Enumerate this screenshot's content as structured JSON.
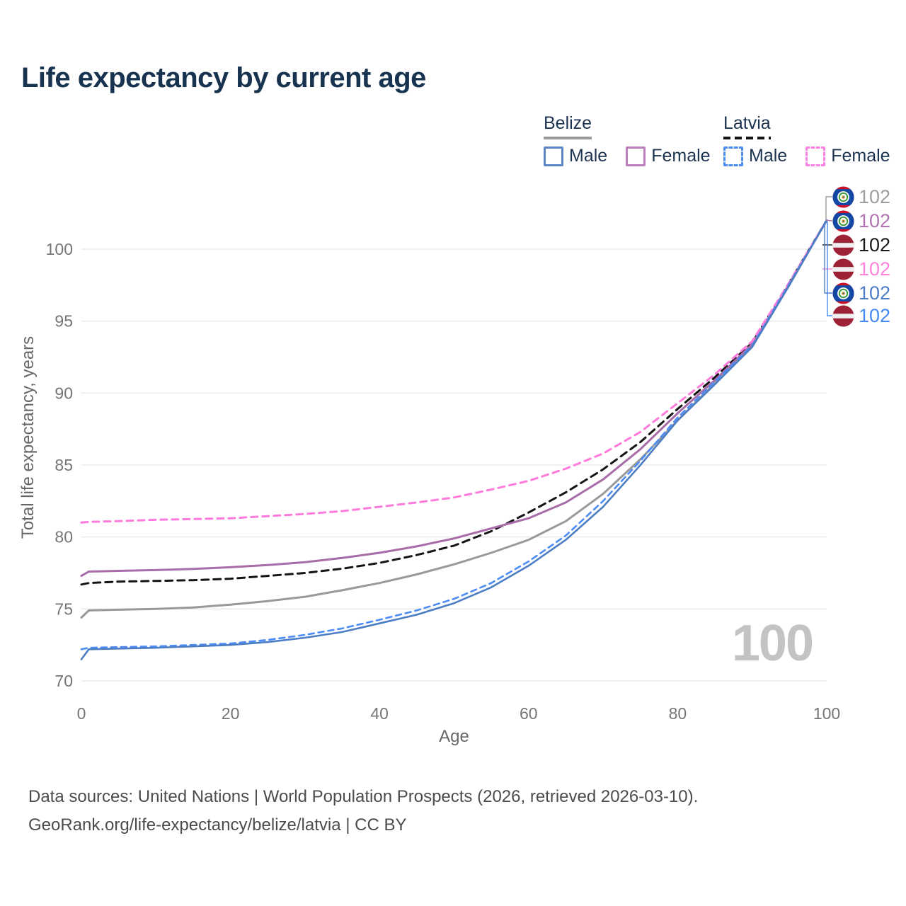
{
  "title": "Life expectancy by current age",
  "legend": {
    "groups": [
      {
        "label": "Belize",
        "underline_style": "solid",
        "underline_color": "#9a9a9a",
        "items": [
          {
            "label": "Male",
            "color": "#5b84c4",
            "dashed": false
          },
          {
            "label": "Female",
            "color": "#bd7fbc",
            "dashed": false
          }
        ]
      },
      {
        "label": "Latvia",
        "underline_style": "dashed",
        "underline_color": "#141414",
        "items": [
          {
            "label": "Male",
            "color": "#4e8cf0",
            "dashed": true
          },
          {
            "label": "Female",
            "color": "#fc83e2",
            "dashed": true
          }
        ]
      }
    ]
  },
  "watermark": "100",
  "footer": {
    "line1": "Data sources: United Nations | World Population Prospects (2026, retrieved 2026-03-10).",
    "line2": "GeoRank.org/life-expectancy/belize/latvia | CC BY"
  },
  "chart_data": {
    "type": "line",
    "title": "Life expectancy by current age",
    "xlabel": "Age",
    "ylabel": "Total life expectancy, years",
    "xlim": [
      0,
      100
    ],
    "ylim": [
      70,
      100
    ],
    "grid": true,
    "legend_position": "top-right",
    "xticks": [
      0,
      20,
      40,
      60,
      80,
      100
    ],
    "yticks": [
      70,
      75,
      80,
      85,
      90,
      95,
      100
    ],
    "x": [
      0,
      1,
      5,
      10,
      15,
      20,
      25,
      30,
      35,
      40,
      45,
      50,
      55,
      60,
      65,
      70,
      75,
      80,
      85,
      90,
      95,
      100
    ],
    "series": [
      {
        "name": "Belize",
        "country": "belize",
        "sex": "both",
        "color": "#999999",
        "dash": null,
        "width": 3,
        "values": [
          74.4,
          74.9,
          74.95,
          75.0,
          75.1,
          75.3,
          75.55,
          75.85,
          76.3,
          76.8,
          77.4,
          78.1,
          78.9,
          79.8,
          81.1,
          83.0,
          85.4,
          88.1,
          90.7,
          93.3,
          97.6,
          102
        ]
      },
      {
        "name": "Latvia",
        "country": "latvia",
        "sex": "both",
        "color": "#141414",
        "dash": "10 7",
        "width": 3,
        "values": [
          76.7,
          76.8,
          76.9,
          76.95,
          77.0,
          77.1,
          77.3,
          77.5,
          77.8,
          78.2,
          78.75,
          79.4,
          80.4,
          81.7,
          83.1,
          84.7,
          86.6,
          88.9,
          91.1,
          93.5,
          97.7,
          102
        ]
      },
      {
        "name": "Belize Female",
        "country": "belize",
        "sex": "female",
        "color": "#a86ca8",
        "dash": null,
        "width": 3,
        "values": [
          77.3,
          77.6,
          77.65,
          77.7,
          77.78,
          77.9,
          78.05,
          78.25,
          78.55,
          78.9,
          79.35,
          79.9,
          80.6,
          81.3,
          82.4,
          84.0,
          86.1,
          88.6,
          90.9,
          93.4,
          97.6,
          102
        ]
      },
      {
        "name": "Latvia Female",
        "country": "latvia",
        "sex": "female",
        "color": "#ff7bdb",
        "dash": "9 7",
        "width": 3,
        "values": [
          81.0,
          81.05,
          81.1,
          81.2,
          81.25,
          81.3,
          81.45,
          81.6,
          81.8,
          82.1,
          82.4,
          82.75,
          83.3,
          83.9,
          84.75,
          85.8,
          87.3,
          89.3,
          91.3,
          93.6,
          97.7,
          102
        ]
      },
      {
        "name": "Latvia Male",
        "country": "latvia",
        "sex": "male",
        "color": "#4d8cf5",
        "dash": "8 6",
        "width": 2.6,
        "values": [
          72.2,
          72.3,
          72.35,
          72.4,
          72.5,
          72.6,
          72.85,
          73.2,
          73.65,
          74.25,
          74.9,
          75.7,
          76.8,
          78.3,
          80.1,
          82.5,
          85.3,
          88.3,
          90.8,
          93.3,
          97.6,
          102
        ]
      },
      {
        "name": "Belize Male",
        "country": "belize",
        "sex": "male",
        "color": "#4d7ec3",
        "dash": null,
        "width": 2.6,
        "values": [
          71.5,
          72.2,
          72.25,
          72.3,
          72.4,
          72.5,
          72.7,
          73.0,
          73.4,
          74.0,
          74.6,
          75.4,
          76.5,
          78.0,
          79.8,
          82.1,
          85.0,
          88.1,
          90.6,
          93.2,
          97.5,
          102
        ]
      }
    ],
    "end_labels": [
      {
        "text": "102",
        "flag": "belize",
        "color": "#9e9e9e",
        "series": "Belize"
      },
      {
        "text": "102",
        "flag": "belize",
        "color": "#b273b1",
        "series": "Belize Female"
      },
      {
        "text": "102",
        "flag": "latvia",
        "color": "#1a1a1a",
        "series": "Latvia"
      },
      {
        "text": "102",
        "flag": "latvia",
        "color": "#ff85dc",
        "series": "Latvia Female"
      },
      {
        "text": "102",
        "flag": "belize",
        "color": "#4e7ec9",
        "series": "Belize Male"
      },
      {
        "text": "102",
        "flag": "latvia",
        "color": "#448af5",
        "series": "Latvia Male"
      }
    ]
  }
}
